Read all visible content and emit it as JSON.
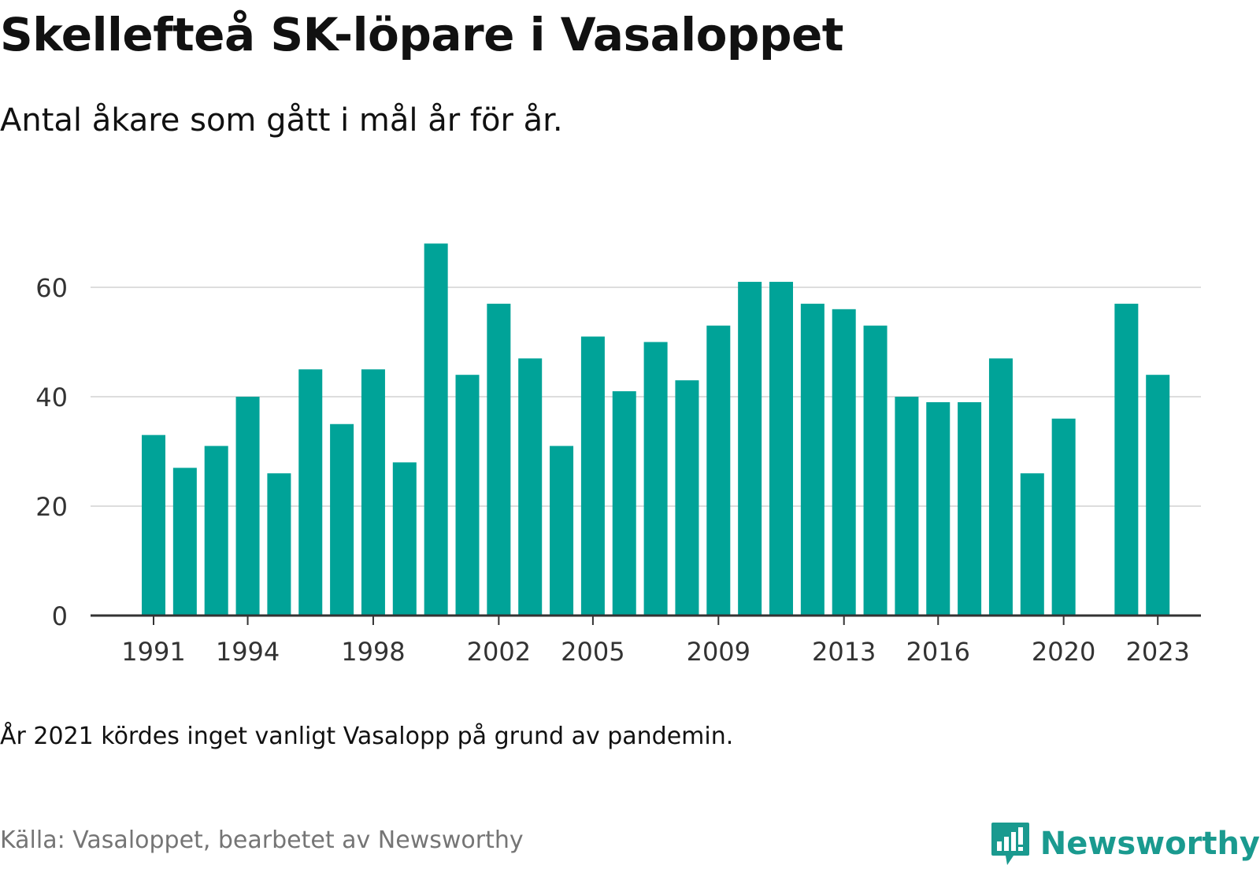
{
  "header": {
    "title": "Skellefteå SK-löpare i Vasaloppet",
    "subtitle": "Antal åkare som gått i mål år för år."
  },
  "footer": {
    "note": "År 2021 kördes inget vanligt Vasalopp på grund av pandemin.",
    "source": "Källa: Vasaloppet, bearbetet av Newsworthy",
    "logo_text": "Newsworthy",
    "logo_icon": "newsworthy-bar-chart-icon"
  },
  "colors": {
    "bar": "#00a398",
    "grid": "#dddddd",
    "axis": "#333333",
    "tick_text": "#333333",
    "brand": "#1a9a8f"
  },
  "chart_data": {
    "type": "bar",
    "title": "Skellefteå SK-löpare i Vasaloppet",
    "subtitle": "Antal åkare som gått i mål år för år.",
    "xlabel": "",
    "ylabel": "",
    "ylim": [
      0,
      70
    ],
    "yticks": [
      0,
      20,
      40,
      60
    ],
    "grid": true,
    "legend": "none",
    "x_tick_labels": [
      1991,
      1994,
      1998,
      2002,
      2005,
      2009,
      2013,
      2016,
      2020,
      2023
    ],
    "categories": [
      1991,
      1992,
      1993,
      1994,
      1995,
      1996,
      1997,
      1998,
      1999,
      2000,
      2001,
      2002,
      2003,
      2004,
      2005,
      2006,
      2007,
      2008,
      2009,
      2010,
      2011,
      2012,
      2013,
      2014,
      2015,
      2016,
      2017,
      2018,
      2019,
      2020,
      2021,
      2022,
      2023
    ],
    "values": [
      33,
      27,
      31,
      40,
      26,
      45,
      35,
      45,
      28,
      68,
      44,
      57,
      47,
      31,
      51,
      41,
      50,
      43,
      53,
      61,
      61,
      57,
      56,
      53,
      40,
      39,
      39,
      47,
      26,
      36,
      null,
      57,
      44
    ]
  }
}
